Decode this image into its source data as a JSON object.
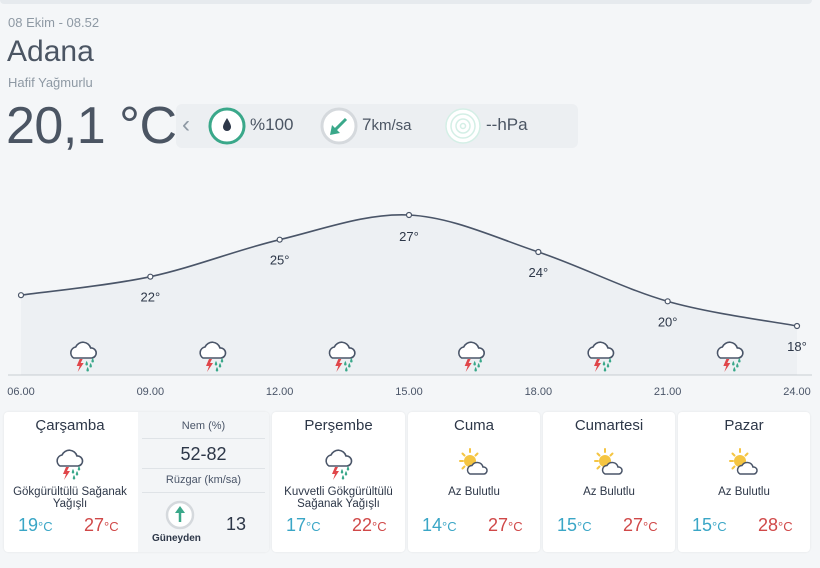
{
  "header": {
    "date": "08 Ekim - 08.52",
    "city": "Adana",
    "condition": "Hafif Yağmurlu",
    "temperature": "20,1 °C"
  },
  "metrics": {
    "humidity": "%100",
    "wind_value": "7",
    "wind_unit": "km/sa",
    "pressure": "--hPa"
  },
  "chart_data": {
    "type": "line",
    "x": [
      "06.00",
      "09.00",
      "12.00",
      "15.00",
      "18.00",
      "21.00",
      "24.00"
    ],
    "series": [
      {
        "values": [
          20.5,
          22,
          25,
          27,
          24,
          20,
          18
        ]
      }
    ],
    "point_labels": [
      "",
      "22°",
      "25°",
      "27°",
      "24°",
      "20°",
      "18°"
    ],
    "icons_between": [
      "thunder-rain-icon",
      "thunder-rain-icon",
      "thunder-rain-icon",
      "thunder-rain-icon",
      "thunder-rain-icon",
      "thunder-rain-icon"
    ],
    "colors": {
      "line": "#4a5568",
      "fill": "#edf0f3",
      "axis": "#c8cdd2"
    }
  },
  "today": {
    "day": "Çarşamba",
    "description": "Gökgürültülü Sağanak Yağışlı",
    "low": "19",
    "high": "27",
    "unit": "°C",
    "humidity_label": "Nem (%)",
    "humidity_value": "52-82",
    "wind_label": "Rüzgar (km/sa)",
    "wind_dir": "Güneyden",
    "wind_value": "13"
  },
  "days": [
    {
      "day": "Perşembe",
      "description": "Kuvvetli Gökgürültülü Sağanak Yağışlı",
      "low": "17",
      "high": "22",
      "unit": "°C",
      "icon": "thunder-rain-icon"
    },
    {
      "day": "Cuma",
      "description": "Az Bulutlu",
      "low": "14",
      "high": "27",
      "unit": "°C",
      "icon": "partly-cloudy-icon"
    },
    {
      "day": "Cumartesi",
      "description": "Az Bulutlu",
      "low": "15",
      "high": "27",
      "unit": "°C",
      "icon": "partly-cloudy-icon"
    },
    {
      "day": "Pazar",
      "description": "Az Bulutlu",
      "low": "15",
      "high": "28",
      "unit": "°C",
      "icon": "partly-cloudy-icon"
    }
  ]
}
